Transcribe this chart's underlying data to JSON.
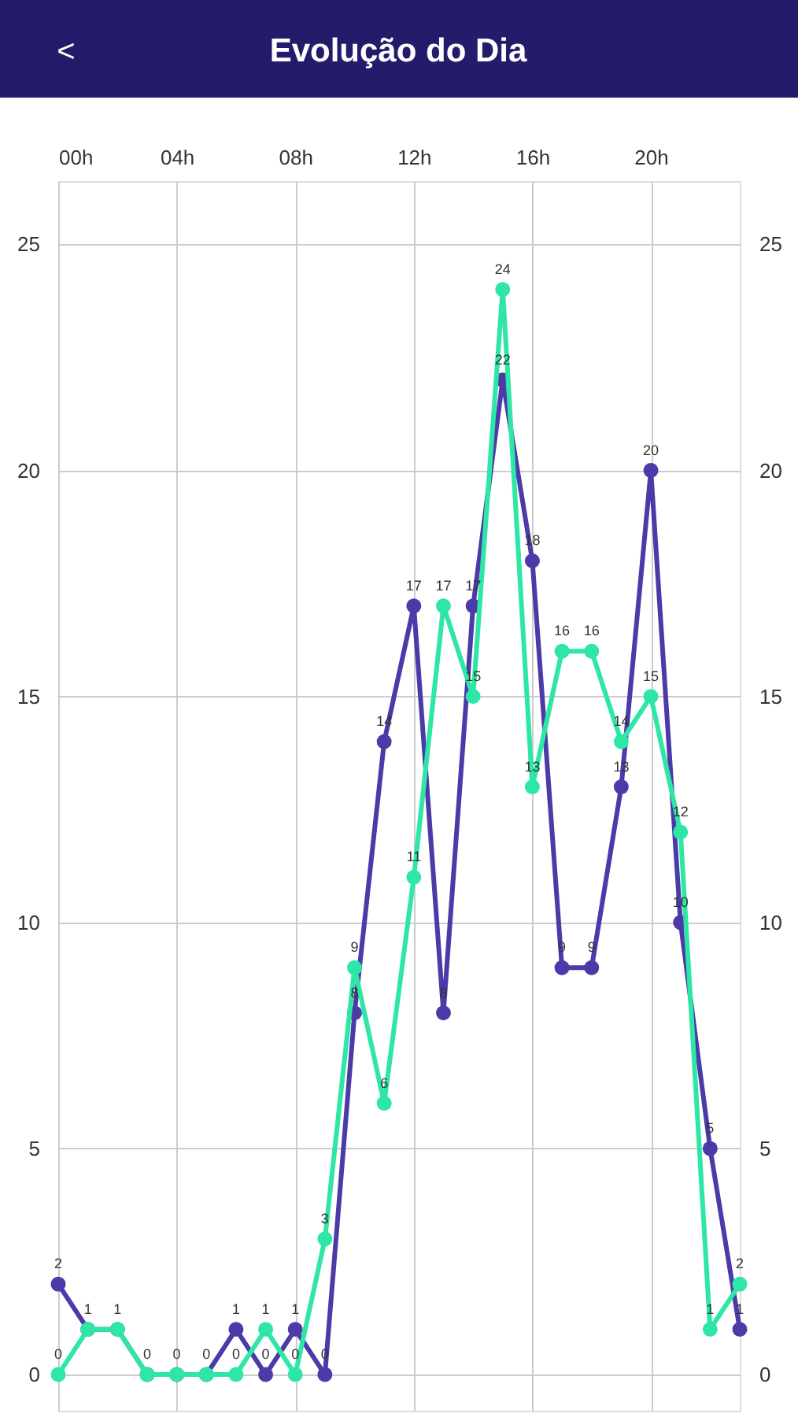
{
  "chart_data": {
    "type": "line",
    "title": "Evolução do Dia",
    "annotations": [
      "<"
    ],
    "x": [
      0,
      1,
      2,
      3,
      4,
      5,
      6,
      7,
      8,
      9,
      10,
      11,
      12,
      13,
      14,
      15,
      16,
      17,
      18,
      19,
      20,
      21,
      22,
      23
    ],
    "xlim": [
      0,
      23
    ],
    "xticks": [
      {
        "value": 0,
        "label": "00h"
      },
      {
        "value": 4,
        "label": "04h"
      },
      {
        "value": 8,
        "label": "08h"
      },
      {
        "value": 12,
        "label": "12h"
      },
      {
        "value": 16,
        "label": "16h"
      },
      {
        "value": 20,
        "label": "20h"
      }
    ],
    "ylim": [
      -0.8,
      26.4
    ],
    "yticks": [
      0,
      5,
      10,
      15,
      20,
      25
    ],
    "y2lim": [
      -0.8,
      26.4
    ],
    "y2ticks": [
      0,
      5,
      10,
      15,
      20,
      25
    ],
    "series": [
      {
        "color": "#4b3aa8",
        "values": [
          2,
          1,
          1,
          0,
          0,
          0,
          1,
          0,
          1,
          0,
          8,
          14,
          17,
          8,
          17,
          22,
          18,
          9,
          9,
          13,
          20,
          10,
          5,
          1
        ]
      },
      {
        "color": "#2ee6a6",
        "values": [
          0,
          1,
          1,
          0,
          0,
          0,
          0,
          1,
          0,
          3,
          9,
          6,
          11,
          17,
          15,
          24,
          13,
          16,
          16,
          14,
          15,
          12,
          1,
          2
        ],
        "value_labels": [
          "0",
          null,
          null,
          null,
          null,
          null,
          "0",
          "1",
          "0",
          "3",
          "9",
          "6",
          "11",
          "17",
          "15",
          "24",
          "13",
          "16",
          "16",
          "14",
          "15",
          "12",
          "1",
          "2"
        ]
      }
    ],
    "data_labels": true,
    "grid": true,
    "marker": "circle",
    "line_style": "solid"
  }
}
